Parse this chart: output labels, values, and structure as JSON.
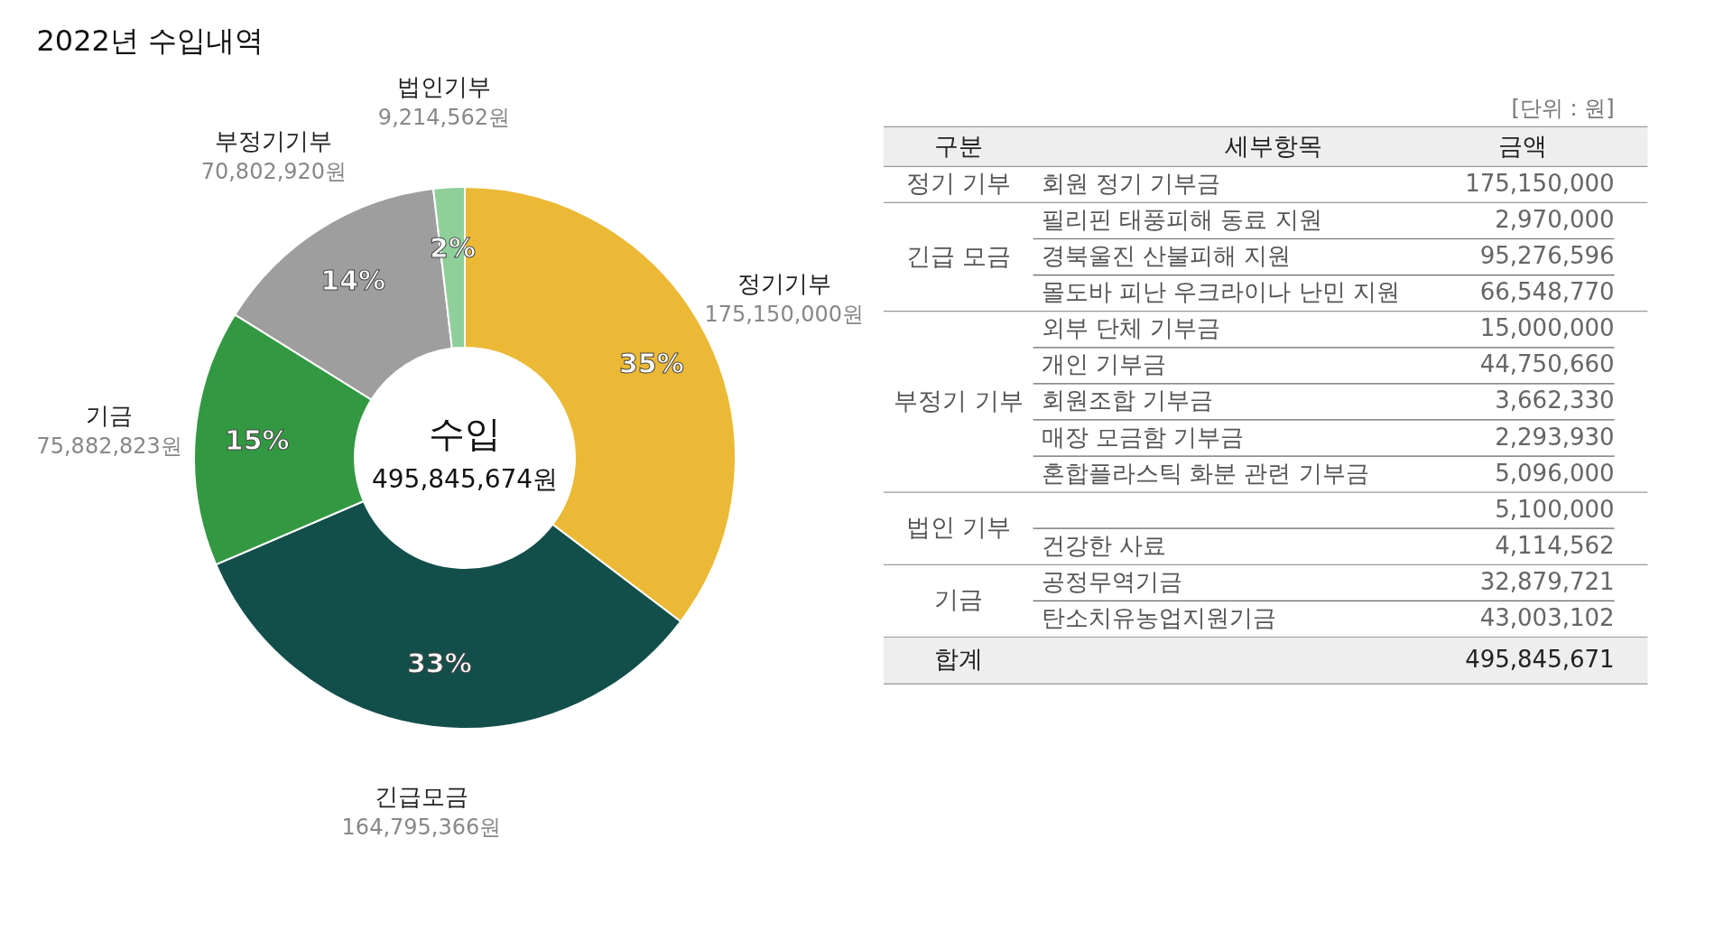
{
  "chart_data": [
    {
      "type": "donut",
      "title": "2022년 수입내역",
      "categories": [
        "정기기부",
        "긴급모금",
        "기금",
        "부정기기부",
        "법인기부"
      ],
      "values": [
        175150000,
        164795366,
        75882823,
        70802920,
        9214562
      ],
      "value_labels": [
        "175,150,000원",
        "164,795,366원",
        "75,882,823원",
        "70,802,920원",
        "9,214,562원"
      ],
      "colors": [
        "#ebb935",
        "#134f4a",
        "#339842",
        "#9e9e9e",
        "#8fcf9a"
      ],
      "annotations": [
        "35%",
        "33%",
        "15%",
        "14%",
        "2%",
        "수입",
        "495,845,674원"
      ]
    },
    {
      "type": "other",
      "subtitle": "[단위 : 원]",
      "categories": [
        "구분",
        "세부항목",
        "금액"
      ],
      "cell_labels": [
        [
          "정기 기부",
          "회원 정기 기부금",
          "175,150,000"
        ],
        [
          "긴급 모금",
          "필리핀 태풍피해 동료 지원",
          "2,970,000"
        ],
        [
          null,
          "경북울진 산불피해 지원",
          "95,276,596"
        ],
        [
          null,
          "몰도바 피난 우크라이나 난민 지원",
          "66,548,770"
        ],
        [
          "부정기 기부",
          "외부 단체 기부금",
          "15,000,000"
        ],
        [
          null,
          "개인 기부금",
          "44,750,660"
        ],
        [
          null,
          "회원조합 기부금",
          "3,662,330"
        ],
        [
          null,
          "매장 모금함 기부금",
          "2,293,930"
        ],
        [
          null,
          "혼합플라스틱 화분 관련 기부금",
          "5,096,000"
        ],
        [
          "법인 기부",
          null,
          "5,100,000"
        ],
        [
          null,
          "건강한 사료",
          "4,114,562"
        ],
        [
          "기금",
          "공정무역기금",
          "32,879,721"
        ],
        [
          null,
          "탄소치유농업지원기금",
          "43,003,102"
        ],
        [
          "합계",
          null,
          "495,845,671"
        ]
      ]
    }
  ]
}
